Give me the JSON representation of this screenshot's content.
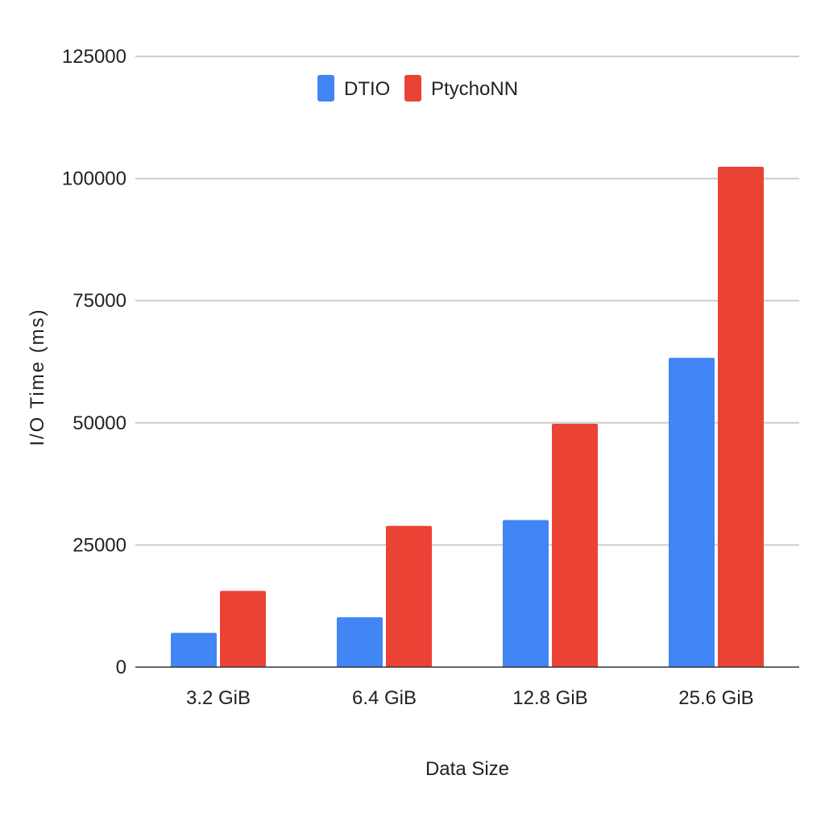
{
  "chart_data": {
    "type": "bar",
    "title": "",
    "xlabel": "Data Size",
    "ylabel": "I/O Time (ms)",
    "categories": [
      "3.2 GiB",
      "6.4 GiB",
      "12.8 GiB",
      "25.6 GiB"
    ],
    "series": [
      {
        "name": "DTIO",
        "color": "#4285F4",
        "values": [
          7000,
          10200,
          30100,
          63300
        ]
      },
      {
        "name": "PtychoNN",
        "color": "#EA4335",
        "values": [
          15600,
          28900,
          49800,
          102400
        ]
      }
    ],
    "ylim": [
      0,
      125000
    ],
    "yticks": [
      0,
      25000,
      50000,
      75000,
      100000,
      125000
    ],
    "ytick_labels": [
      "0",
      "25000",
      "50000",
      "75000",
      "100000",
      "125000"
    ],
    "grid": true,
    "legend_position": "top"
  }
}
